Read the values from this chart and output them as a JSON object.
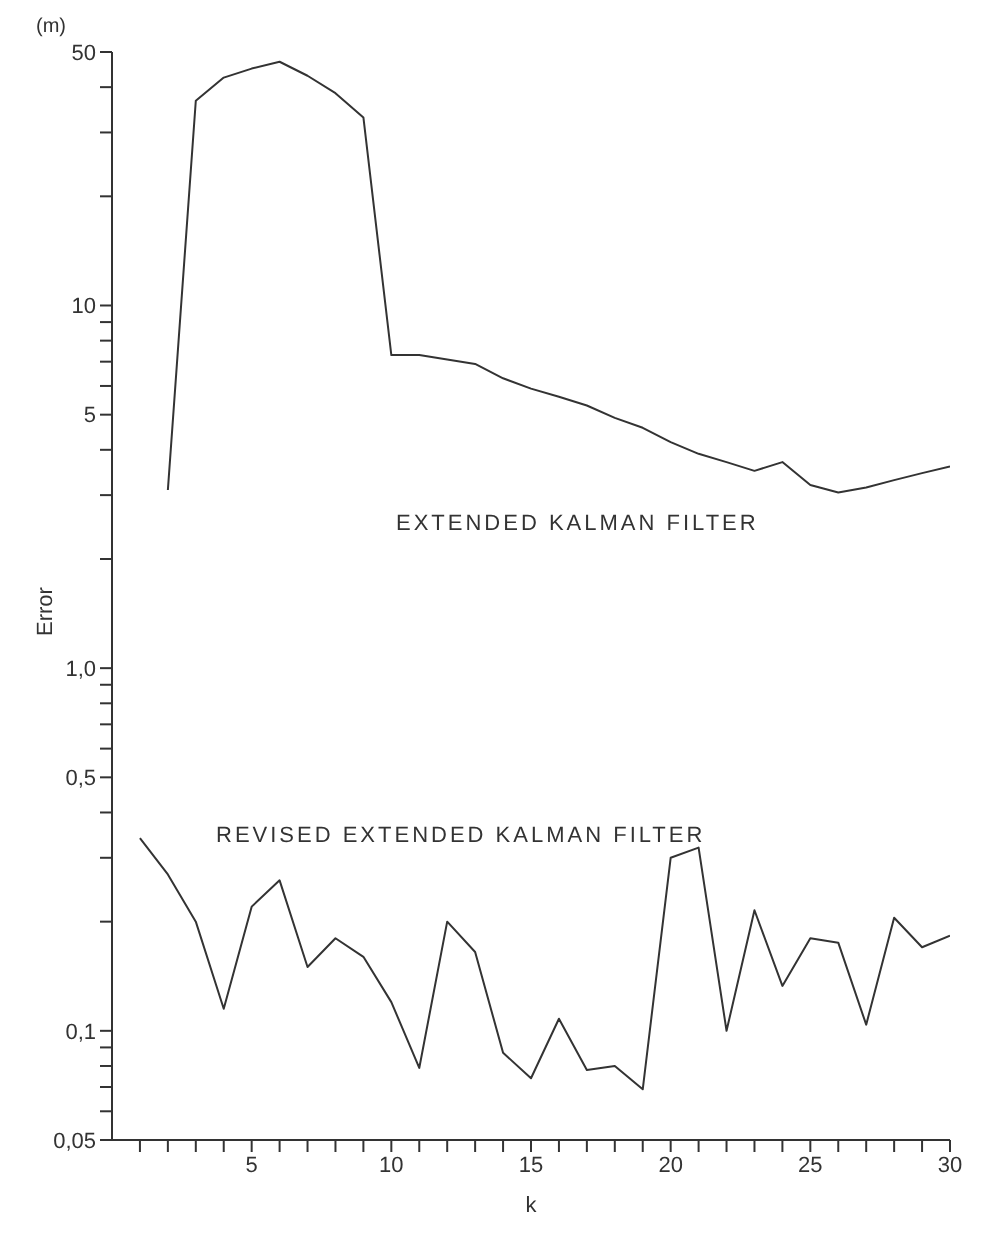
{
  "chart_data": {
    "type": "line",
    "xlabel": "k",
    "ylabel": "Error",
    "annotations": [
      "(m)"
    ],
    "log": "y",
    "marker": "none",
    "line_style": "solid",
    "xlim": [
      0,
      30
    ],
    "ylim": [
      0.05,
      50
    ],
    "xticks": [
      {
        "value": 1,
        "label": null
      },
      {
        "value": 2,
        "label": null
      },
      {
        "value": 3,
        "label": null
      },
      {
        "value": 4,
        "label": null
      },
      5,
      {
        "value": 6,
        "label": null
      },
      {
        "value": 7,
        "label": null
      },
      {
        "value": 8,
        "label": null
      },
      {
        "value": 9,
        "label": null
      },
      10,
      {
        "value": 11,
        "label": null
      },
      {
        "value": 12,
        "label": null
      },
      {
        "value": 13,
        "label": null
      },
      {
        "value": 14,
        "label": null
      },
      15,
      {
        "value": 16,
        "label": null
      },
      {
        "value": 17,
        "label": null
      },
      {
        "value": 18,
        "label": null
      },
      {
        "value": 19,
        "label": null
      },
      20,
      {
        "value": 21,
        "label": null
      },
      {
        "value": 22,
        "label": null
      },
      {
        "value": 23,
        "label": null
      },
      {
        "value": 24,
        "label": null
      },
      25,
      {
        "value": 26,
        "label": null
      },
      {
        "value": 27,
        "label": null
      },
      {
        "value": 28,
        "label": null
      },
      {
        "value": 29,
        "label": null
      },
      30
    ],
    "yticks": [
      {
        "value": 0.05,
        "label": "0,05"
      },
      {
        "value": 0.06,
        "label": null
      },
      {
        "value": 0.07,
        "label": null
      },
      {
        "value": 0.08,
        "label": null
      },
      {
        "value": 0.09,
        "label": null
      },
      {
        "value": 0.1,
        "label": "0,1"
      },
      {
        "value": 0.2,
        "label": null
      },
      {
        "value": 0.3,
        "label": null
      },
      {
        "value": 0.4,
        "label": null
      },
      {
        "value": 0.5,
        "label": "0,5"
      },
      {
        "value": 0.6,
        "label": null
      },
      {
        "value": 0.7,
        "label": null
      },
      {
        "value": 0.8,
        "label": null
      },
      {
        "value": 0.9,
        "label": null
      },
      {
        "value": 1,
        "label": "1,0"
      },
      {
        "value": 2,
        "label": null
      },
      {
        "value": 3,
        "label": null
      },
      {
        "value": 4,
        "label": null
      },
      5,
      {
        "value": 6,
        "label": null
      },
      {
        "value": 7,
        "label": null
      },
      {
        "value": 8,
        "label": null
      },
      {
        "value": 9,
        "label": null
      },
      10,
      {
        "value": 20,
        "label": null
      },
      {
        "value": 30,
        "label": null
      },
      {
        "value": 40,
        "label": null
      },
      50
    ],
    "series": [
      {
        "name": "EXTENDED KALMAN FILTER",
        "color": "#333333",
        "x": [
          2,
          3,
          4,
          5,
          6,
          7,
          8,
          9,
          10,
          11,
          12,
          13,
          14,
          15,
          16,
          17,
          18,
          19,
          20,
          21,
          22,
          23,
          24,
          25,
          26,
          27,
          28,
          29,
          30
        ],
        "values": [
          3.1,
          36.7,
          42.5,
          45,
          47,
          43,
          38.5,
          33,
          7.3,
          7.3,
          7.1,
          6.9,
          6.3,
          5.9,
          5.6,
          5.3,
          4.9,
          4.6,
          4.2,
          3.9,
          3.7,
          3.5,
          3.7,
          3.2,
          3.05,
          3.15,
          3.3,
          3.45,
          3.6
        ]
      },
      {
        "name": "REVISED EXTENDED KALMAN FILTER",
        "color": "#333333",
        "x": [
          1,
          2,
          3,
          4,
          5,
          6,
          7,
          8,
          9,
          10,
          11,
          12,
          13,
          14,
          15,
          16,
          17,
          18,
          19,
          20,
          21,
          22,
          23,
          24,
          25,
          26,
          27,
          28,
          29,
          30
        ],
        "values": [
          0.34,
          0.27,
          0.2,
          0.115,
          0.22,
          0.26,
          0.15,
          0.18,
          0.16,
          0.12,
          0.079,
          0.2,
          0.165,
          0.087,
          0.074,
          0.108,
          0.078,
          0.08,
          0.069,
          0.3,
          0.32,
          0.1,
          0.215,
          0.133,
          0.18,
          0.175,
          0.104,
          0.205,
          0.17,
          0.183
        ]
      }
    ]
  }
}
